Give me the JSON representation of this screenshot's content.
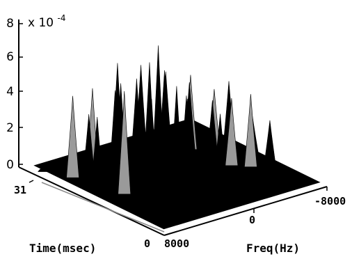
{
  "chart_data": {
    "type": "surface3d",
    "title": "",
    "exponent_label": "x 10",
    "exponent_power": "-4",
    "zlabel": "",
    "xlabel": "Freq(Hz)",
    "ylabel": "Time(msec)",
    "zlim": [
      0,
      8
    ],
    "z_ticks": [
      "0",
      "2",
      "4",
      "6",
      "8"
    ],
    "freq_ticks": [
      "8000",
      "0",
      "-8000"
    ],
    "time_ticks": [
      "0",
      "31"
    ],
    "freq_range": [
      -8000,
      8000
    ],
    "time_range": [
      0,
      31
    ],
    "surface_color": "#000000",
    "highlight_color": "#9a9a9a",
    "peaks": [
      {
        "freq": 7200,
        "time": 28,
        "value": 0.4
      },
      {
        "freq": 6400,
        "time": 24,
        "value": 4.6
      },
      {
        "freq": 6200,
        "time": 19,
        "value": 4.0
      },
      {
        "freq": 5700,
        "time": 22,
        "value": 3.7
      },
      {
        "freq": 5300,
        "time": 15,
        "value": 5.8
      },
      {
        "freq": 4900,
        "time": 23,
        "value": 4.9
      },
      {
        "freq": 4500,
        "time": 17,
        "value": 4.4
      },
      {
        "freq": 4000,
        "time": 20,
        "value": 5.0
      },
      {
        "freq": 3500,
        "time": 13,
        "value": 5.3
      },
      {
        "freq": 3000,
        "time": 21,
        "value": 5.1
      },
      {
        "freq": 2500,
        "time": 16,
        "value": 4.7
      },
      {
        "freq": 2000,
        "time": 24,
        "value": 5.7
      },
      {
        "freq": 1500,
        "time": 18,
        "value": 6.4
      },
      {
        "freq": 1000,
        "time": 22,
        "value": 4.9
      },
      {
        "freq": 600,
        "time": 14,
        "value": 5.4
      },
      {
        "freq": 200,
        "time": 19,
        "value": 7.0
      },
      {
        "freq": -300,
        "time": 24,
        "value": 5.2
      },
      {
        "freq": -800,
        "time": 15,
        "value": 4.5
      },
      {
        "freq": -1300,
        "time": 21,
        "value": 5.1
      },
      {
        "freq": -1800,
        "time": 17,
        "value": 3.9
      },
      {
        "freq": -2300,
        "time": 23,
        "value": 4.6
      },
      {
        "freq": -2800,
        "time": 12,
        "value": 3.5
      },
      {
        "freq": -3300,
        "time": 20,
        "value": 4.2
      },
      {
        "freq": -3800,
        "time": 16,
        "value": 3.6
      },
      {
        "freq": -4300,
        "time": 22,
        "value": 4.2
      },
      {
        "freq": -4800,
        "time": 14,
        "value": 3.8
      },
      {
        "freq": -5300,
        "time": 19,
        "value": 3.6
      },
      {
        "freq": -5800,
        "time": 12,
        "value": 4.1
      },
      {
        "freq": -6300,
        "time": 18,
        "value": 4.0
      },
      {
        "freq": -6800,
        "time": 10,
        "value": 2.7
      },
      {
        "freq": -7300,
        "time": 15,
        "value": 2.2
      }
    ]
  }
}
